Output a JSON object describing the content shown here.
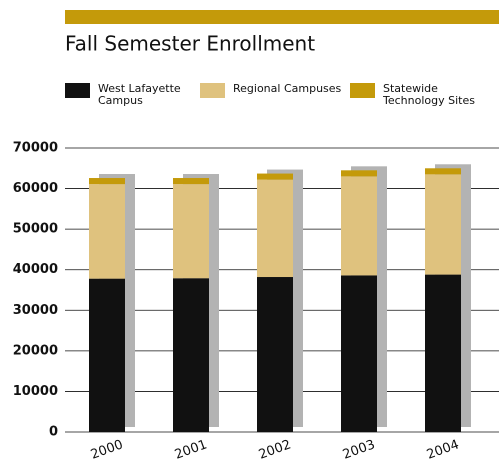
{
  "chart_data": {
    "type": "stacked_bar",
    "title": "Fall Semester Enrollment",
    "categories": [
      "2000",
      "2001",
      "2002",
      "2003",
      "2004"
    ],
    "series": [
      {
        "name": "West Lafayette Campus",
        "color": "#111111",
        "values": [
          37800,
          37900,
          38200,
          38600,
          38800
        ]
      },
      {
        "name": "Regional Campuses",
        "color": "#dfc27e",
        "values": [
          23300,
          23200,
          24000,
          24400,
          24700
        ]
      },
      {
        "name": "Statewide Technology Sites",
        "color": "#c49a0a",
        "values": [
          1500,
          1500,
          1500,
          1500,
          1500
        ]
      }
    ],
    "ylim": [
      0,
      70000
    ],
    "yticks": [
      0,
      10000,
      20000,
      30000,
      40000,
      50000,
      60000,
      70000
    ],
    "grid": true
  }
}
